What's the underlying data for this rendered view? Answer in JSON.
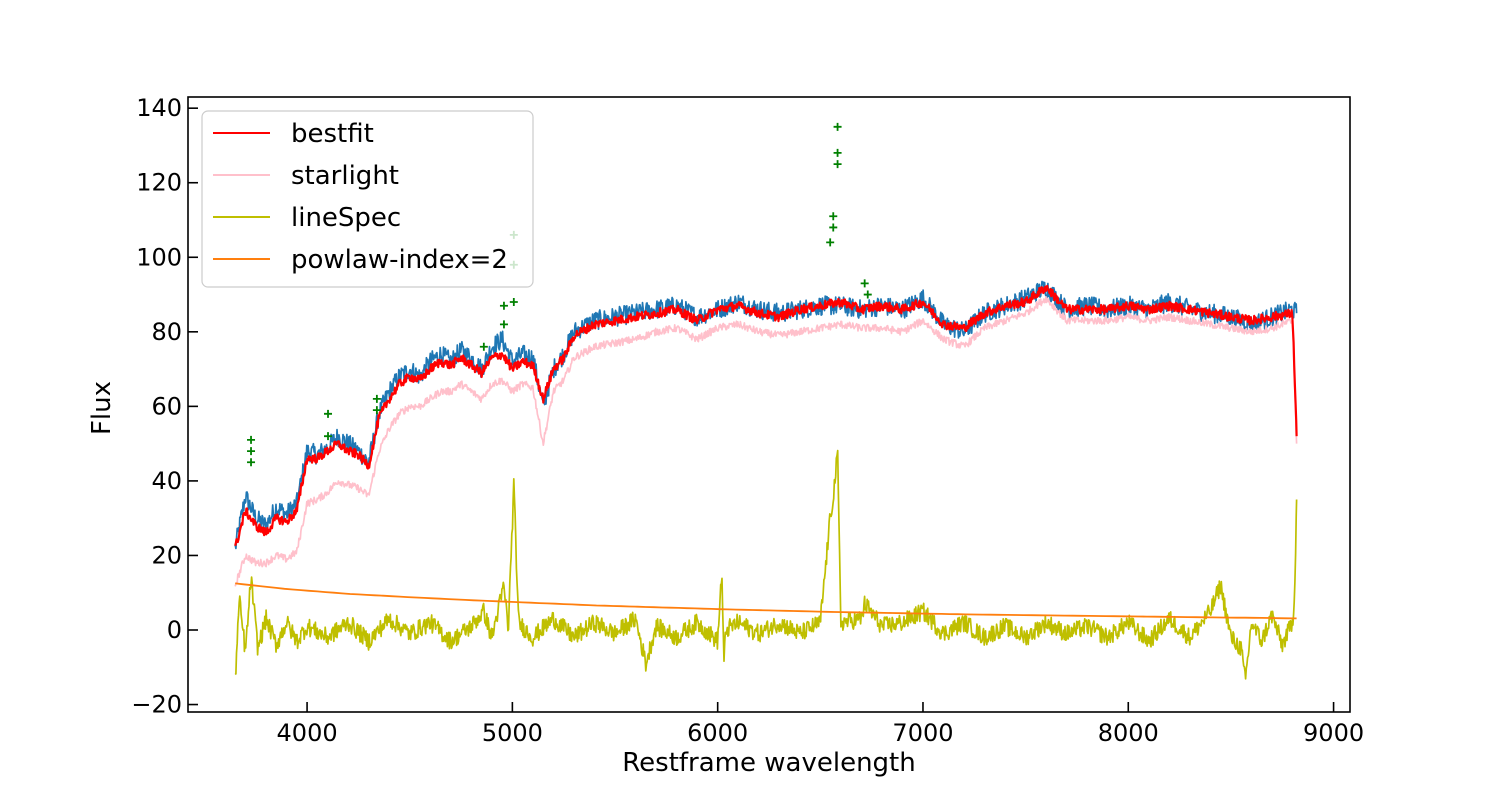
{
  "chart_data": {
    "type": "line",
    "title": "",
    "xlabel": "Restframe wavelength",
    "ylabel": "Flux",
    "xlim": [
      3420,
      9080
    ],
    "ylim": [
      -22,
      143
    ],
    "xticks": [
      4000,
      5000,
      6000,
      7000,
      8000,
      9000
    ],
    "xtick_labels": [
      "4000",
      "5000",
      "6000",
      "7000",
      "8000",
      "9000"
    ],
    "yticks": [
      -20,
      0,
      20,
      40,
      60,
      80,
      100,
      120,
      140
    ],
    "ytick_labels": [
      "−20",
      "0",
      "20",
      "40",
      "60",
      "80",
      "100",
      "120",
      "140"
    ],
    "grid": false,
    "legend_position": "top-left",
    "x_range": [
      3650,
      8820
    ],
    "series": [
      {
        "key": "data",
        "color": "#1f77b4",
        "legend": false,
        "x": [
          3650,
          3700,
          3750,
          3800,
          3850,
          3900,
          3950,
          4000,
          4050,
          4100,
          4150,
          4200,
          4250,
          4300,
          4350,
          4400,
          4450,
          4500,
          4550,
          4600,
          4650,
          4700,
          4750,
          4800,
          4850,
          4900,
          4950,
          5000,
          5050,
          5100,
          5150,
          5200,
          5250,
          5300,
          5400,
          5500,
          5600,
          5700,
          5800,
          5900,
          6000,
          6100,
          6200,
          6300,
          6400,
          6500,
          6600,
          6700,
          6800,
          6900,
          7000,
          7100,
          7200,
          7300,
          7400,
          7500,
          7600,
          7700,
          7800,
          7900,
          8000,
          8100,
          8200,
          8300,
          8400,
          8500,
          8600,
          8700,
          8800,
          8820
        ],
        "y": [
          22,
          36,
          30,
          28,
          33,
          31,
          34,
          48,
          47,
          49,
          52,
          50,
          48,
          45,
          58,
          64,
          68,
          70,
          68,
          72,
          74,
          72,
          75,
          73,
          70,
          76,
          78,
          72,
          74,
          73,
          60,
          70,
          74,
          80,
          83,
          84,
          85,
          86,
          87,
          84,
          86,
          88,
          86,
          85,
          86,
          87,
          87,
          86,
          87,
          86,
          89,
          82,
          80,
          85,
          87,
          89,
          92,
          86,
          87,
          86,
          87,
          86,
          88,
          86,
          85,
          84,
          82,
          84,
          86,
          85
        ]
      },
      {
        "key": "bestfit",
        "name": "bestfit",
        "color": "#ff0000",
        "legend": true,
        "x": [
          3650,
          3700,
          3750,
          3800,
          3850,
          3900,
          3950,
          4000,
          4050,
          4100,
          4150,
          4200,
          4250,
          4300,
          4350,
          4400,
          4450,
          4500,
          4550,
          4600,
          4650,
          4700,
          4750,
          4800,
          4850,
          4900,
          4950,
          5000,
          5050,
          5100,
          5150,
          5200,
          5250,
          5300,
          5400,
          5500,
          5600,
          5700,
          5800,
          5900,
          6000,
          6100,
          6200,
          6300,
          6400,
          6500,
          6600,
          6700,
          6800,
          6900,
          7000,
          7100,
          7200,
          7300,
          7400,
          7500,
          7600,
          7700,
          7800,
          7900,
          8000,
          8100,
          8200,
          8300,
          8400,
          8500,
          8600,
          8700,
          8800,
          8820
        ],
        "y": [
          22,
          32,
          28,
          26,
          30,
          29,
          32,
          46,
          46,
          48,
          50,
          48,
          47,
          44,
          57,
          62,
          66,
          68,
          67,
          70,
          72,
          71,
          73,
          71,
          69,
          73,
          74,
          70,
          72,
          71,
          62,
          70,
          73,
          79,
          82,
          83,
          84,
          85,
          86,
          83,
          86,
          87,
          85,
          84,
          86,
          87,
          88,
          86,
          87,
          86,
          88,
          82,
          81,
          85,
          87,
          88,
          92,
          86,
          86,
          86,
          87,
          86,
          87,
          86,
          85,
          84,
          83,
          84,
          85,
          52
        ]
      },
      {
        "key": "starlight",
        "name": "starlight",
        "color": "#ffc0cb",
        "legend": true,
        "x": [
          3650,
          3700,
          3750,
          3800,
          3850,
          3900,
          3950,
          4000,
          4050,
          4100,
          4150,
          4200,
          4250,
          4300,
          4350,
          4400,
          4450,
          4500,
          4550,
          4600,
          4650,
          4700,
          4750,
          4800,
          4850,
          4900,
          4950,
          5000,
          5050,
          5100,
          5150,
          5200,
          5250,
          5300,
          5400,
          5500,
          5600,
          5700,
          5800,
          5900,
          6000,
          6100,
          6200,
          6300,
          6400,
          6500,
          6600,
          6700,
          6800,
          6900,
          7000,
          7100,
          7200,
          7300,
          7400,
          7500,
          7600,
          7700,
          7800,
          7900,
          8000,
          8100,
          8200,
          8300,
          8400,
          8500,
          8600,
          8700,
          8800,
          8820
        ],
        "y": [
          12,
          20,
          18,
          18,
          20,
          19,
          21,
          34,
          35,
          37,
          40,
          39,
          38,
          36,
          48,
          54,
          58,
          60,
          60,
          62,
          64,
          64,
          66,
          64,
          62,
          66,
          67,
          64,
          66,
          65,
          50,
          64,
          67,
          73,
          76,
          77,
          78,
          80,
          81,
          78,
          81,
          82,
          80,
          79,
          80,
          81,
          82,
          81,
          81,
          80,
          83,
          78,
          76,
          81,
          83,
          85,
          89,
          83,
          83,
          83,
          84,
          83,
          84,
          83,
          82,
          81,
          80,
          81,
          83,
          50
        ]
      },
      {
        "key": "lineSpec",
        "name": "lineSpec",
        "color": "#bfbf00",
        "legend": true,
        "x": [
          3650,
          3670,
          3700,
          3727,
          3760,
          3800,
          3850,
          3900,
          3950,
          4000,
          4100,
          4200,
          4300,
          4400,
          4500,
          4600,
          4700,
          4800,
          4861,
          4900,
          4959,
          4980,
          5007,
          5030,
          5100,
          5200,
          5300,
          5400,
          5500,
          5600,
          5650,
          5700,
          5800,
          5900,
          6000,
          6020,
          6030,
          6040,
          6100,
          6200,
          6300,
          6400,
          6500,
          6548,
          6563,
          6584,
          6600,
          6700,
          6716,
          6731,
          6800,
          6900,
          7000,
          7100,
          7200,
          7300,
          7400,
          7500,
          7600,
          7700,
          7800,
          7900,
          8000,
          8100,
          8200,
          8300,
          8400,
          8450,
          8500,
          8550,
          8570,
          8600,
          8650,
          8700,
          8750,
          8800,
          8810,
          8820
        ],
        "y": [
          -13,
          8,
          -6,
          14,
          -5,
          3,
          -4,
          2,
          -3,
          1,
          -2,
          2,
          -3,
          3,
          -1,
          2,
          -3,
          1,
          5,
          -2,
          12,
          0,
          39,
          2,
          -2,
          3,
          -2,
          2,
          -1,
          3,
          -9,
          1,
          -2,
          2,
          -3,
          16,
          -9,
          0,
          2,
          -1,
          2,
          -1,
          2,
          30,
          36,
          47,
          2,
          3,
          7,
          6,
          1,
          2,
          5,
          -1,
          2,
          -2,
          1,
          -2,
          2,
          -1,
          1,
          -2,
          2,
          -3,
          3,
          -2,
          5,
          12,
          -2,
          -5,
          -14,
          2,
          -3,
          4,
          -4,
          2,
          10,
          35
        ]
      },
      {
        "key": "powlaw",
        "name": "powlaw-index=2",
        "color": "#ff7f0e",
        "legend": true,
        "x": [
          3650,
          3900,
          4200,
          4500,
          4800,
          5100,
          5400,
          5700,
          6000,
          6300,
          6600,
          6900,
          7200,
          7500,
          7800,
          8100,
          8400,
          8700,
          8820
        ],
        "y": [
          12.5,
          11.0,
          9.7,
          8.8,
          8.0,
          7.3,
          6.6,
          6.1,
          5.6,
          5.2,
          4.8,
          4.5,
          4.2,
          4.0,
          3.8,
          3.6,
          3.4,
          3.2,
          3.1
        ]
      },
      {
        "key": "masked",
        "color": "#008000",
        "legend": false,
        "marker": "+",
        "x": [
          3727,
          3727,
          3727,
          4102,
          4102,
          4340,
          4340,
          4861,
          4959,
          4959,
          5007,
          5007,
          5007,
          6548,
          6563,
          6563,
          6584,
          6584,
          6584,
          6716,
          6731
        ],
        "y": [
          51,
          48,
          45,
          58,
          52,
          62,
          59,
          76,
          87,
          82,
          106,
          98,
          88,
          104,
          111,
          108,
          135,
          128,
          125,
          93,
          90
        ]
      }
    ]
  }
}
